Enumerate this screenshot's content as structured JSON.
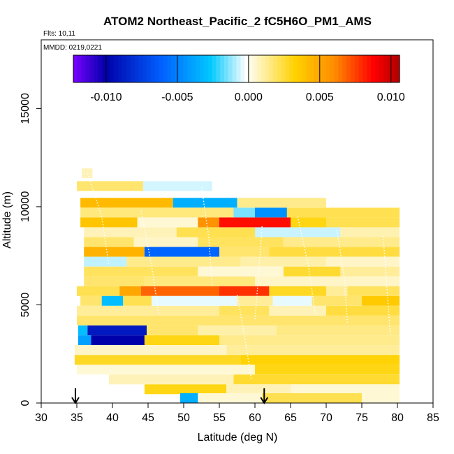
{
  "chart_data": {
    "type": "heatmap",
    "title": "ATOM2 Northeast_Pacific_2 fC5H6O_PM1_AMS",
    "flights_label": "Flts: 10,11",
    "dates_label": "MMDD: 0219,0221",
    "xlabel": "Latitude (deg N)",
    "ylabel": "Altitude (m)",
    "xlim": [
      30,
      85
    ],
    "ylim": [
      0,
      18500
    ],
    "x_ticks": [
      30,
      35,
      40,
      45,
      50,
      55,
      60,
      65,
      70,
      75,
      80,
      85
    ],
    "x_tick_labels": [
      "30",
      "35",
      "40",
      "45",
      "50",
      "55",
      "60",
      "65",
      "70",
      "75",
      "80",
      "85"
    ],
    "y_ticks": [
      0,
      5000,
      10000,
      15000
    ],
    "y_tick_labels": [
      "0",
      "5000",
      "10000",
      "15000"
    ],
    "colorbar": {
      "range": [
        -0.0123,
        0.0106
      ],
      "ticks": [
        -0.01,
        -0.005,
        0.0,
        0.005,
        0.01
      ],
      "tick_labels": [
        "-0.010",
        "-0.005",
        "0.000",
        "0.005",
        "0.010"
      ],
      "colors": [
        "#7a00ff",
        "#0000aa",
        "#0060ff",
        "#00c8ff",
        "#ffffff",
        "#ffd200",
        "#ff8c00",
        "#ff0000",
        "#b00000"
      ]
    },
    "markers": [
      {
        "latitude": 34.8,
        "label": "down-arrow"
      },
      {
        "latitude": 61.3,
        "label": "down-arrow"
      }
    ],
    "layers": [
      {
        "altitude": 11700,
        "segments": [
          [
            35.7,
            37.2,
            0.0008
          ]
        ]
      },
      {
        "altitude": 11050,
        "segments": [
          [
            35.0,
            44.3,
            0.0018
          ],
          [
            44.3,
            54.0,
            -0.0006
          ]
        ]
      },
      {
        "altitude": 10200,
        "segments": [
          [
            35.5,
            48.5,
            0.0042
          ],
          [
            48.5,
            57.5,
            -0.0035
          ],
          [
            57.5,
            70.0,
            0.0014
          ]
        ]
      },
      {
        "altitude": 9700,
        "segments": [
          [
            35.5,
            57.0,
            0.0016
          ],
          [
            57.0,
            60.0,
            -0.0015
          ],
          [
            60.0,
            64.5,
            -0.0045
          ],
          [
            64.5,
            80.3,
            0.0022
          ]
        ]
      },
      {
        "altitude": 9200,
        "segments": [
          [
            35.5,
            43.5,
            0.0038
          ],
          [
            43.5,
            52.0,
            0.0004
          ],
          [
            52.0,
            55.0,
            0.0058
          ],
          [
            55.0,
            65.0,
            0.0085
          ],
          [
            65.0,
            70.0,
            0.003
          ],
          [
            70.0,
            80.3,
            0.0022
          ]
        ]
      },
      {
        "altitude": 8700,
        "segments": [
          [
            36.0,
            49.0,
            0.0008
          ],
          [
            49.0,
            60.0,
            0.0022
          ],
          [
            60.0,
            72.0,
            -0.0007
          ],
          [
            72.0,
            80.3,
            0.0009
          ]
        ]
      },
      {
        "altitude": 8200,
        "segments": [
          [
            36.0,
            43.0,
            0.0018
          ],
          [
            43.0,
            52.0,
            0.0006
          ],
          [
            52.0,
            64.0,
            0.002
          ],
          [
            64.0,
            80.3,
            0.0014
          ]
        ]
      },
      {
        "altitude": 7700,
        "segments": [
          [
            36.0,
            44.5,
            0.0045
          ],
          [
            44.5,
            55.0,
            -0.006
          ],
          [
            55.0,
            62.0,
            0.0018
          ],
          [
            62.0,
            80.3,
            0.0024
          ]
        ]
      },
      {
        "altitude": 7200,
        "segments": [
          [
            36.0,
            42.0,
            -0.0008
          ],
          [
            42.0,
            58.0,
            0.0014
          ],
          [
            58.0,
            70.0,
            0.001
          ],
          [
            70.0,
            80.3,
            0.0006
          ]
        ]
      },
      {
        "altitude": 6700,
        "segments": [
          [
            36.0,
            52.0,
            0.002
          ],
          [
            52.0,
            64.0,
            0.0004
          ],
          [
            64.0,
            72.0,
            0.0026
          ],
          [
            72.0,
            80.3,
            0.0012
          ]
        ]
      },
      {
        "altitude": 6200,
        "segments": [
          [
            36.0,
            44.5,
            0.0018
          ],
          [
            44.5,
            60.0,
            0.0016
          ],
          [
            60.0,
            80.3,
            0.0006
          ]
        ]
      },
      {
        "altitude": 5700,
        "segments": [
          [
            35.0,
            41.0,
            0.0022
          ],
          [
            41.0,
            44.0,
            0.005
          ],
          [
            44.0,
            55.0,
            0.0068
          ],
          [
            55.0,
            62.0,
            0.0078
          ],
          [
            62.0,
            70.0,
            0.0028
          ],
          [
            70.0,
            73.0,
            0.0012
          ],
          [
            73.0,
            80.3,
            0.002
          ]
        ]
      },
      {
        "altitude": 5200,
        "segments": [
          [
            35.5,
            38.5,
            0.0018
          ],
          [
            38.5,
            41.5,
            -0.003
          ],
          [
            41.5,
            45.5,
            0.0022
          ],
          [
            45.5,
            57.5,
            -0.0004
          ],
          [
            57.5,
            62.5,
            0.0012
          ],
          [
            62.5,
            68.0,
            -0.0004
          ],
          [
            68.0,
            75.0,
            0.0018
          ],
          [
            75.0,
            80.3,
            0.0036
          ]
        ]
      },
      {
        "altitude": 4700,
        "segments": [
          [
            35.0,
            55.0,
            0.0012
          ],
          [
            55.0,
            62.0,
            0.002
          ],
          [
            62.0,
            70.0,
            0.0008
          ],
          [
            70.0,
            80.3,
            0.0024
          ]
        ]
      },
      {
        "altitude": 4200,
        "segments": [
          [
            35.0,
            80.3,
            0.0018
          ]
        ]
      },
      {
        "altitude": 3700,
        "segments": [
          [
            35.2,
            36.5,
            -0.003
          ],
          [
            36.5,
            44.8,
            -0.009
          ],
          [
            44.8,
            52.0,
            0.0018
          ],
          [
            52.0,
            63.0,
            0.001
          ],
          [
            63.0,
            80.3,
            0.0015
          ]
        ]
      },
      {
        "altitude": 3200,
        "segments": [
          [
            35.2,
            37.0,
            -0.004
          ],
          [
            37.0,
            44.5,
            -0.01
          ],
          [
            44.5,
            55.0,
            0.003
          ],
          [
            55.0,
            80.3,
            0.0014
          ]
        ]
      },
      {
        "altitude": 2700,
        "segments": [
          [
            34.7,
            56.0,
            0.0006
          ],
          [
            56.0,
            80.3,
            0.0012
          ]
        ]
      },
      {
        "altitude": 2200,
        "segments": [
          [
            34.7,
            58.0,
            0.0028
          ],
          [
            58.0,
            80.3,
            0.0032
          ]
        ]
      },
      {
        "altitude": 1700,
        "segments": [
          [
            35.0,
            60.0,
            0.0004
          ],
          [
            60.0,
            80.3,
            0.003
          ]
        ]
      },
      {
        "altitude": 1200,
        "segments": [
          [
            39.5,
            57.0,
            0.0008
          ],
          [
            57.0,
            80.3,
            0.0026
          ]
        ]
      },
      {
        "altitude": 700,
        "segments": [
          [
            44.5,
            56.0,
            0.003
          ],
          [
            56.0,
            65.0,
            0.0008
          ],
          [
            65.0,
            80.3,
            0.0004
          ]
        ]
      },
      {
        "altitude": 250,
        "segments": [
          [
            49.5,
            52.0,
            -0.0035
          ],
          [
            52.0,
            61.0,
            0.0004
          ],
          [
            61.0,
            75.0,
            0.0022
          ],
          [
            75.0,
            80.3,
            0.0004
          ]
        ]
      }
    ]
  }
}
